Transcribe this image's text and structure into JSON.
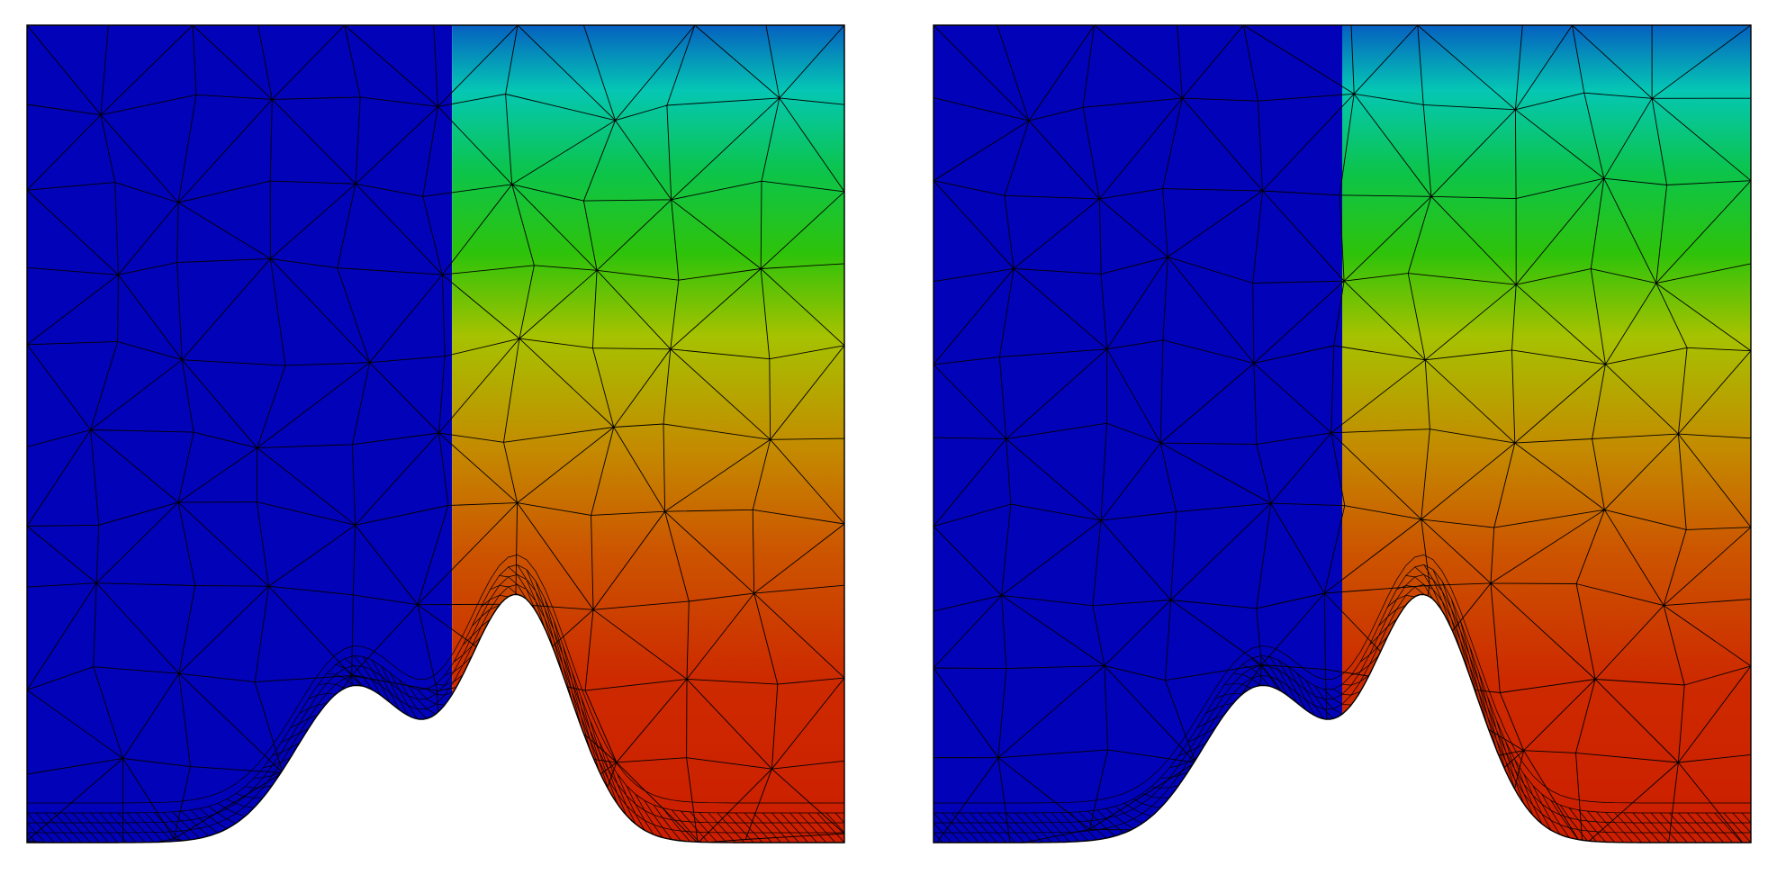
{
  "panels": [
    {
      "id": "left",
      "name": "mesh-panel-left",
      "field_split": 0.52,
      "bump_side": "right"
    },
    {
      "id": "right",
      "name": "mesh-panel-right",
      "field_split": 0.5,
      "bump_side": "right"
    }
  ],
  "colors": {
    "background": "#ffffff",
    "blue_region": "#0202b8",
    "mesh_line": "#000000",
    "gradient": [
      "#0560c0",
      "#05c7b4",
      "#0cc44a",
      "#2ec30a",
      "#a6c200",
      "#c48a00",
      "#cc5600",
      "#cd2a00",
      "#cc1e00"
    ]
  }
}
